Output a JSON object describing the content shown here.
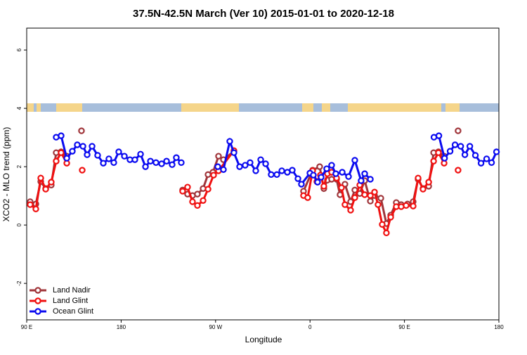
{
  "chart_data": {
    "type": "line",
    "title": "37.5N-42.5N March (Ver 10)   2015-01-01 to 2020-12-18",
    "x_label": "Longitude",
    "y_label": "XCO2 - MLO trend (ppm)",
    "xlim": [
      90,
      540
    ],
    "ylim": [
      -3.25,
      6.75
    ],
    "xticks": [
      {
        "value": 90,
        "label": "90 E"
      },
      180,
      {
        "value": 270,
        "label": "90 W"
      },
      {
        "value": 360,
        "label": "0"
      },
      {
        "value": 450,
        "label": "90 E"
      },
      {
        "value": 540,
        "label": "180"
      }
    ],
    "yticks": [
      -2,
      0,
      2,
      4,
      6
    ],
    "legend": "bottom-left",
    "series": [
      {
        "name": "Land Nadir",
        "color": "#a0353a",
        "x": [
          93.3,
          98.7,
          103.4,
          108.1,
          113.4,
          118.1,
          122.8,
          128.2,
          null,
          142.2,
          null,
          238.6,
          243.3,
          248,
          252.7,
          258.1,
          262.8,
          267.5,
          272.8,
          277.5,
          287.5,
          null,
          353.8,
          362.5,
          369.2,
          373.2,
          376.6,
          380.6,
          385.3,
          388.6,
          393.3,
          398.7,
          402.7,
          407.4,
          412.1,
          417.5,
          421.5,
          427.5,
          432.8,
          436.9,
          442.2,
          446.9,
          452.9,
          458.3,
          463,
          467.7,
          473.1,
          477.8,
          482.4,
          487.8,
          null,
          501.1
        ],
        "values": [
          0.8,
          0.72,
          1.49,
          1.25,
          1.37,
          2.48,
          2.51,
          2.36,
          null,
          3.23,
          null,
          1.2,
          1.06,
          1.01,
          1.06,
          1.25,
          1.73,
          1.81,
          2.36,
          2.24,
          2.53,
          null,
          1.16,
          1.88,
          2.0,
          1.25,
          1.54,
          1.57,
          1.57,
          1.04,
          1.4,
          0.8,
          1.2,
          1.08,
          1.52,
          0.82,
          1.01,
          0.92,
          0.05,
          0.34,
          0.77,
          0.7,
          0.72,
          0.8,
          1.57,
          1.25,
          1.33,
          2.48,
          2.51,
          2.36,
          null,
          3.23
        ]
      },
      {
        "name": "Land Glint",
        "color": "#f01010",
        "x": [
          93.3,
          98.7,
          103.4,
          108.1,
          113.4,
          118.1,
          122.8,
          128.2,
          null,
          142.9,
          null,
          238.6,
          243.3,
          248,
          252.7,
          258.1,
          262.8,
          268.1,
          272.8,
          287.5,
          null,
          353.8,
          357.8,
          362.5,
          366.5,
          369.9,
          373.2,
          376.6,
          380.6,
          385.3,
          390,
          393.3,
          398.7,
          402.7,
          407.4,
          412.1,
          417.5,
          421.5,
          424.8,
          428.8,
          432.8,
          436.9,
          442.2,
          446.9,
          451.6,
          458.3,
          463,
          467.7,
          473.1,
          477.8,
          482.4,
          487.8,
          null,
          501.1
        ],
        "values": [
          0.7,
          0.55,
          1.61,
          1.23,
          1.47,
          2.19,
          2.48,
          2.12,
          null,
          1.88,
          null,
          1.16,
          1.3,
          0.8,
          0.67,
          0.84,
          1.23,
          1.71,
          1.86,
          2.55,
          null,
          1.01,
          0.94,
          1.86,
          1.49,
          1.71,
          1.33,
          1.76,
          1.81,
          1.61,
          1.28,
          0.7,
          0.51,
          0.94,
          1.37,
          1.04,
          1.01,
          1.13,
          0.7,
          0.02,
          -0.27,
          0.27,
          0.63,
          0.63,
          0.67,
          0.65,
          1.61,
          1.23,
          1.47,
          2.19,
          2.48,
          2.12,
          null,
          1.88
        ]
      },
      {
        "name": "Ocean Glint",
        "color": "#0a0af0",
        "x": [
          118.1,
          122.8,
          128.2,
          133.5,
          138.2,
          143.6,
          147.6,
          152.3,
          157.6,
          163,
          168.3,
          173,
          177.7,
          183.1,
          188.4,
          193.1,
          198.5,
          203.2,
          207.9,
          213.2,
          218.6,
          223.3,
          228.6,
          232.6,
          237.3,
          null,
          272.1,
          277.5,
          283.5,
          287.5,
          292.9,
          298.2,
          302.9,
          308.3,
          313,
          317.7,
          323,
          328.4,
          333.1,
          338.4,
          343.1,
          348.5,
          351.8,
          359.9,
          363.2,
          367.2,
          370.6,
          375.9,
          380.6,
          384.6,
          390.7,
          396.7,
          402.7,
          408.7,
          412.1,
          417.5,
          null,
          478.1,
          482.8,
          488.2,
          493.5,
          498.2,
          503.6,
          507.6,
          512.3,
          517.6,
          523,
          528.3,
          533,
          537.7
        ],
        "values": [
          3.01,
          3.06,
          2.29,
          2.53,
          2.75,
          2.7,
          2.41,
          2.7,
          2.39,
          2.12,
          2.27,
          2.14,
          2.51,
          2.36,
          2.24,
          2.24,
          2.43,
          2.0,
          2.19,
          2.14,
          2.1,
          2.19,
          2.07,
          2.31,
          2.14,
          null,
          2.0,
          1.9,
          2.87,
          2.48,
          2.0,
          2.05,
          2.14,
          1.86,
          2.24,
          2.1,
          1.73,
          1.73,
          1.86,
          1.81,
          1.88,
          1.59,
          1.4,
          1.78,
          1.71,
          1.47,
          1.64,
          1.93,
          2.05,
          1.76,
          1.81,
          1.66,
          2.22,
          1.52,
          1.76,
          1.57,
          null,
          3.01,
          3.06,
          2.29,
          2.53,
          2.75,
          2.7,
          2.41,
          2.7,
          2.39,
          2.12,
          2.27,
          2.14,
          2.51
        ]
      }
    ]
  }
}
